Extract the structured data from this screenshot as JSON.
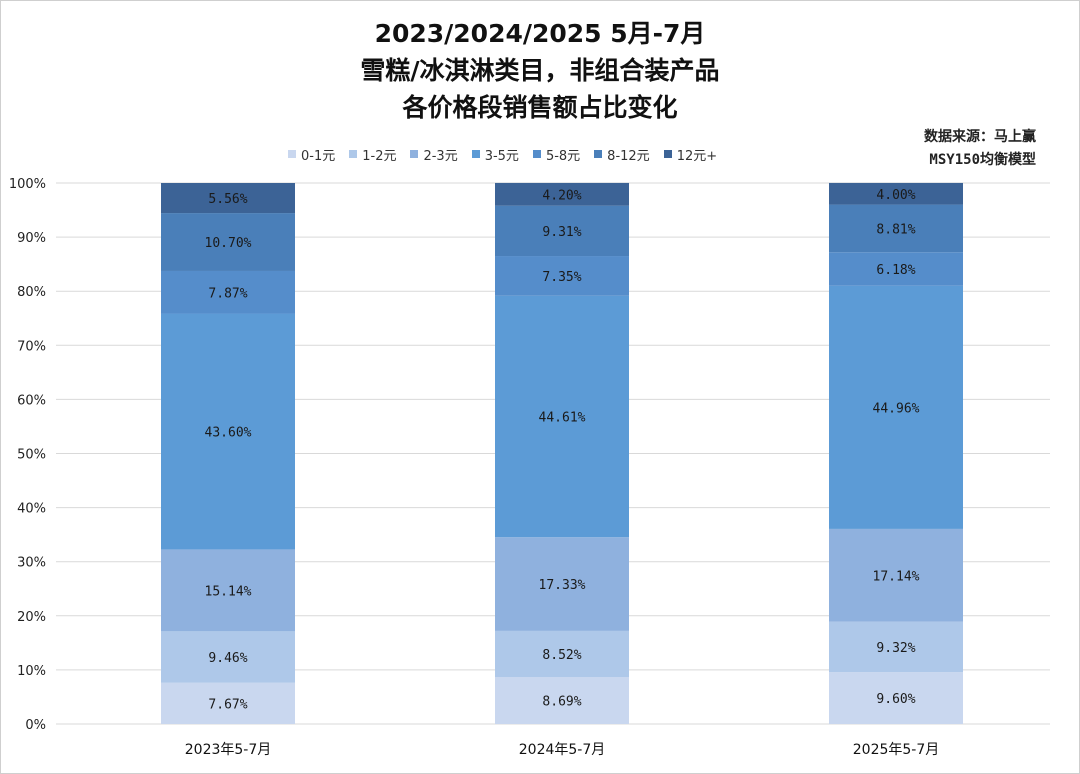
{
  "title_lines": [
    "2023/2024/2025 5月-7月",
    "雪糕/冰淇淋类目，非组合装产品",
    "各价格段销售额占比变化"
  ],
  "source_lines": [
    "数据来源：马上赢",
    "MSY150均衡模型"
  ],
  "colors": {
    "series": [
      "#c9d7ef",
      "#aec8e9",
      "#8fb1de",
      "#5c9bd6",
      "#558dcb",
      "#4a7fb9",
      "#3c6396"
    ]
  },
  "chart_data": {
    "type": "bar",
    "stacked": true,
    "categories": [
      "2023年5-7月",
      "2024年5-7月",
      "2025年5-7月"
    ],
    "series": [
      {
        "name": "0-1元",
        "values": [
          7.67,
          8.69,
          9.6
        ],
        "labels": [
          "7.67%",
          "8.69%",
          "9.60%"
        ]
      },
      {
        "name": "1-2元",
        "values": [
          9.46,
          8.52,
          9.32
        ],
        "labels": [
          "9.46%",
          "8.52%",
          "9.32%"
        ]
      },
      {
        "name": "2-3元",
        "values": [
          15.14,
          17.33,
          17.14
        ],
        "labels": [
          "15.14%",
          "17.33%",
          "17.14%"
        ]
      },
      {
        "name": "3-5元",
        "values": [
          43.6,
          44.61,
          44.96
        ],
        "labels": [
          "43.60%",
          "44.61%",
          "44.96%"
        ]
      },
      {
        "name": "5-8元",
        "values": [
          7.87,
          7.35,
          6.18
        ],
        "labels": [
          "7.87%",
          "7.35%",
          "6.18%"
        ]
      },
      {
        "name": "8-12元",
        "values": [
          10.7,
          9.31,
          8.81
        ],
        "labels": [
          "10.70%",
          "9.31%",
          "8.81%"
        ]
      },
      {
        "name": "12元+",
        "values": [
          5.56,
          4.2,
          4.0
        ],
        "labels": [
          "5.56%",
          "4.20%",
          "4.00%"
        ]
      }
    ],
    "ylim": [
      0,
      100
    ],
    "yticks": [
      "0%",
      "10%",
      "20%",
      "30%",
      "40%",
      "50%",
      "60%",
      "70%",
      "80%",
      "90%",
      "100%"
    ],
    "grid": true,
    "legend": "top"
  }
}
